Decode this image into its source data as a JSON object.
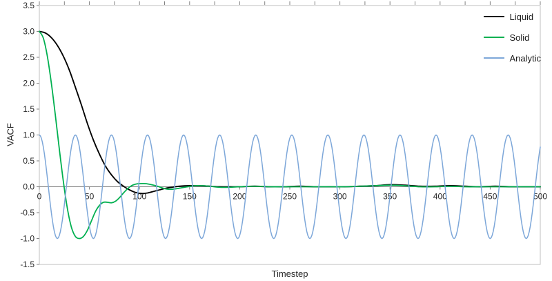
{
  "style": {
    "axis_color": "#808080",
    "border_color": "#bfbfbf",
    "text_color": "#262626",
    "background": "#ffffff"
  },
  "chart_data": {
    "type": "line",
    "title": "",
    "xlabel": "Timestep",
    "ylabel": "VACF",
    "xlim": [
      0,
      500
    ],
    "ylim": [
      -1.5,
      3.5
    ],
    "grid": false,
    "legend_position": "top-right",
    "x_ticks": [
      0,
      50,
      100,
      150,
      200,
      250,
      300,
      350,
      400,
      450,
      500
    ],
    "y_tick_labels": [
      "3.5",
      "3.0",
      "2.5",
      "2.0",
      "1.5",
      "1.0",
      "0.5",
      "0.0",
      "-0.5",
      "-1.0",
      "-1.5"
    ],
    "top_minor_tick_step": 25,
    "series": [
      {
        "name": "Liquid",
        "color": "#000000",
        "points": [
          [
            0,
            3.0
          ],
          [
            6,
            2.97
          ],
          [
            12,
            2.88
          ],
          [
            18,
            2.73
          ],
          [
            24,
            2.52
          ],
          [
            30,
            2.25
          ],
          [
            36,
            1.92
          ],
          [
            42,
            1.58
          ],
          [
            48,
            1.22
          ],
          [
            54,
            0.9
          ],
          [
            60,
            0.63
          ],
          [
            66,
            0.4
          ],
          [
            72,
            0.23
          ],
          [
            78,
            0.1
          ],
          [
            84,
            0.01
          ],
          [
            90,
            -0.06
          ],
          [
            96,
            -0.11
          ],
          [
            102,
            -0.13
          ],
          [
            108,
            -0.12
          ],
          [
            114,
            -0.09
          ],
          [
            120,
            -0.06
          ],
          [
            126,
            -0.03
          ],
          [
            132,
            -0.01
          ],
          [
            140,
            0.01
          ],
          [
            150,
            0.02
          ],
          [
            160,
            0.02
          ],
          [
            170,
            0.01
          ],
          [
            180,
            0.0
          ],
          [
            190,
            0.0
          ],
          [
            200,
            0.0
          ],
          [
            215,
            0.01
          ],
          [
            230,
            0.0
          ],
          [
            245,
            0.0
          ],
          [
            260,
            0.01
          ],
          [
            275,
            0.0
          ],
          [
            290,
            0.0
          ],
          [
            305,
            0.0
          ],
          [
            320,
            0.01
          ],
          [
            335,
            0.02
          ],
          [
            350,
            0.04
          ],
          [
            365,
            0.03
          ],
          [
            380,
            0.01
          ],
          [
            395,
            0.01
          ],
          [
            410,
            0.02
          ],
          [
            425,
            0.01
          ],
          [
            440,
            0.0
          ],
          [
            455,
            0.01
          ],
          [
            470,
            0.0
          ],
          [
            485,
            0.0
          ],
          [
            500,
            0.0
          ]
        ]
      },
      {
        "name": "Solid",
        "color": "#00b050",
        "points": [
          [
            0,
            3.0
          ],
          [
            4,
            2.87
          ],
          [
            8,
            2.52
          ],
          [
            12,
            2.0
          ],
          [
            16,
            1.38
          ],
          [
            20,
            0.72
          ],
          [
            24,
            0.1
          ],
          [
            28,
            -0.42
          ],
          [
            32,
            -0.78
          ],
          [
            36,
            -0.96
          ],
          [
            40,
            -1.0
          ],
          [
            44,
            -0.96
          ],
          [
            48,
            -0.84
          ],
          [
            52,
            -0.66
          ],
          [
            56,
            -0.48
          ],
          [
            60,
            -0.36
          ],
          [
            64,
            -0.3
          ],
          [
            68,
            -0.3
          ],
          [
            72,
            -0.31
          ],
          [
            76,
            -0.28
          ],
          [
            80,
            -0.21
          ],
          [
            84,
            -0.12
          ],
          [
            88,
            -0.04
          ],
          [
            92,
            0.02
          ],
          [
            96,
            0.05
          ],
          [
            100,
            0.06
          ],
          [
            106,
            0.06
          ],
          [
            112,
            0.04
          ],
          [
            118,
            0.01
          ],
          [
            124,
            -0.03
          ],
          [
            130,
            -0.05
          ],
          [
            136,
            -0.04
          ],
          [
            142,
            -0.02
          ],
          [
            148,
            0.0
          ],
          [
            155,
            0.02
          ],
          [
            162,
            0.02
          ],
          [
            170,
            0.01
          ],
          [
            180,
            -0.01
          ],
          [
            190,
            -0.01
          ],
          [
            200,
            0.0
          ],
          [
            215,
            0.01
          ],
          [
            230,
            0.0
          ],
          [
            245,
            0.0
          ],
          [
            260,
            0.0
          ],
          [
            275,
            0.0
          ],
          [
            290,
            0.0
          ],
          [
            305,
            0.0
          ],
          [
            320,
            0.01
          ],
          [
            335,
            0.02
          ],
          [
            350,
            0.03
          ],
          [
            365,
            0.02
          ],
          [
            380,
            0.0
          ],
          [
            395,
            0.0
          ],
          [
            410,
            0.01
          ],
          [
            425,
            0.0
          ],
          [
            440,
            0.0
          ],
          [
            455,
            0.0
          ],
          [
            470,
            0.0
          ],
          [
            485,
            0.0
          ],
          [
            500,
            0.0
          ]
        ]
      },
      {
        "name": "Analytic",
        "color": "#7da7d9",
        "generator": {
          "kind": "cosine",
          "amplitude": 1.0,
          "period": 36,
          "phase_deg": 0,
          "x_start": 0,
          "x_end": 500,
          "x_step": 1
        }
      }
    ]
  }
}
